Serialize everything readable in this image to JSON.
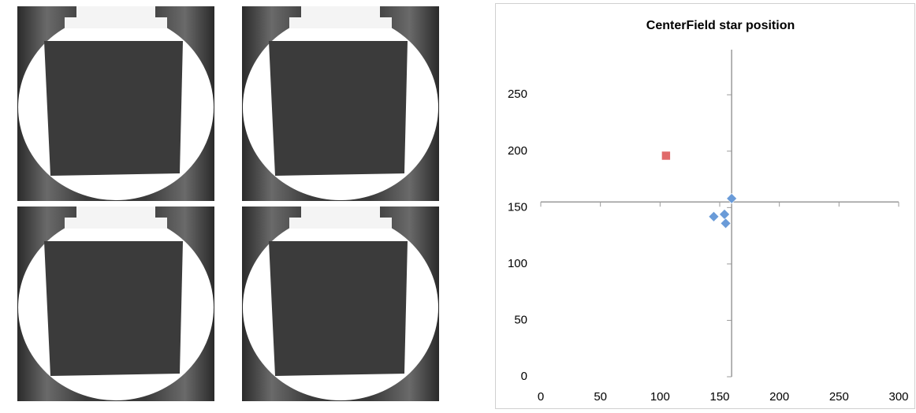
{
  "chart_data": {
    "type": "scatter",
    "title": "CenterField star position",
    "series": [
      {
        "color": "#6a9bd8",
        "marker": "diamond",
        "x": [
          160,
          145,
          154,
          155
        ],
        "values": [
          158,
          142,
          144,
          136
        ]
      },
      {
        "color": "#e06a6a",
        "marker": "square",
        "x": [
          105
        ],
        "values": [
          196
        ]
      }
    ],
    "xlim": [
      0,
      300
    ],
    "xticks": [
      0,
      50,
      100,
      150,
      200,
      250,
      300
    ],
    "ylim": [
      0,
      290
    ],
    "yticks": [
      0,
      50,
      100,
      150,
      200,
      250
    ],
    "axis_cross": {
      "x": 160,
      "y": 155
    }
  }
}
